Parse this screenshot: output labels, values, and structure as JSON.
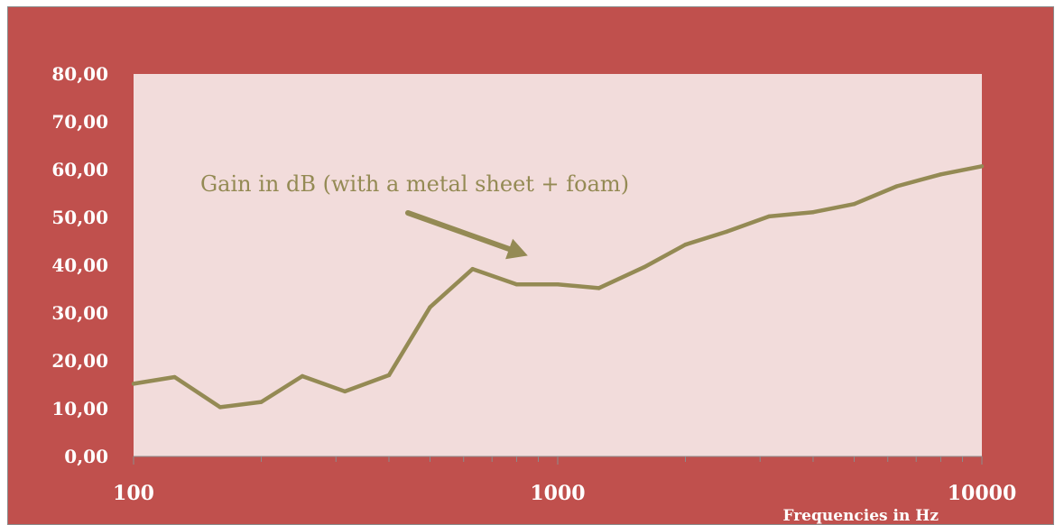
{
  "chart_data": {
    "type": "line",
    "title": "",
    "xlabel": "Frequencies in Hz",
    "ylabel": "",
    "x_scale": "log",
    "xlim": [
      100,
      10000
    ],
    "ylim": [
      0,
      80
    ],
    "x_ticks": [
      "100",
      "1000",
      "10000"
    ],
    "y_ticks": [
      "0,00",
      "10,00",
      "20,00",
      "30,00",
      "40,00",
      "50,00",
      "60,00",
      "70,00",
      "80,00"
    ],
    "grid": false,
    "x": [
      100,
      125,
      160,
      200,
      250,
      315,
      400,
      500,
      630,
      800,
      1000,
      1250,
      1600,
      2000,
      2500,
      3150,
      4000,
      5000,
      6300,
      8000,
      10000
    ],
    "series": [
      {
        "values": [
          15.2,
          16.6,
          10.3,
          11.4,
          16.8,
          13.6,
          17.0,
          31.2,
          39.2,
          36.0,
          36.0,
          35.2,
          39.6,
          44.3,
          47.0,
          50.2,
          51.1,
          52.8,
          56.5,
          59.0,
          60.7
        ],
        "color": "#948a54"
      }
    ],
    "annotation": {
      "text": "Gain in dB (with a metal sheet + foam)",
      "arrow_target": {
        "x": 850,
        "y": 42
      }
    }
  },
  "colors": {
    "frame": "#c0504d",
    "plot_area": "#f2dcdb",
    "line": "#948a54",
    "text": "#ffffff"
  }
}
